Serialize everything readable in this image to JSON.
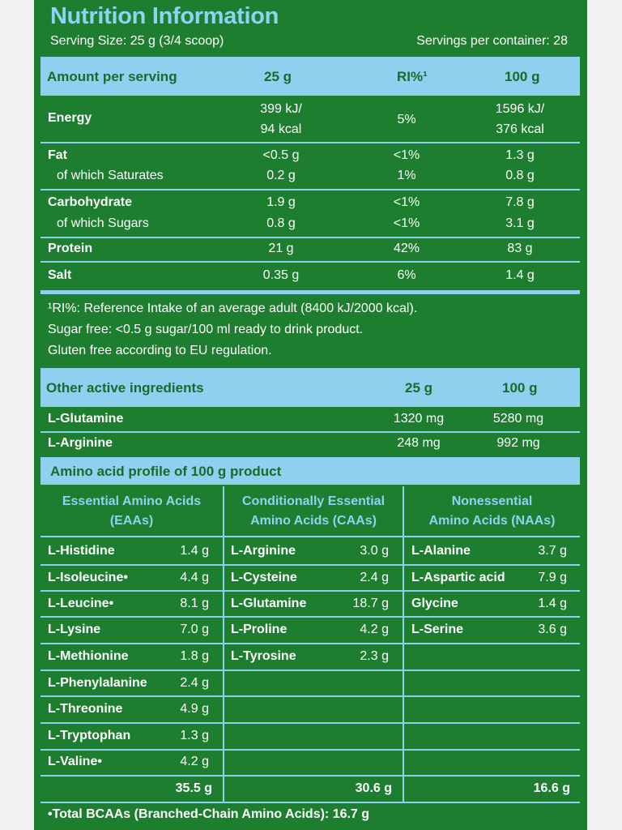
{
  "title": "Nutrition Information",
  "serving_size": "Serving Size: 25 g (3/4 scoop)",
  "servings_per_container": "Servings per container: 28",
  "header": {
    "col1": "Amount per serving",
    "col2": "25 g",
    "col3": "RI%¹",
    "col4": "100 g"
  },
  "rows": [
    {
      "name": "Energy",
      "v25": "399 kJ/",
      "v25b": "94 kcal",
      "ri": "5%",
      "v100": "1596 kJ/",
      "v100b": "376 kcal"
    },
    {
      "name": "Fat",
      "v25": "<0.5 g",
      "ri": "<1%",
      "v100": "1.3 g"
    },
    {
      "name": "of which Saturates",
      "v25": "0.2 g",
      "ri": "1%",
      "v100": "0.8 g"
    },
    {
      "name": "Carbohydrate",
      "v25": "1.9 g",
      "ri": "<1%",
      "v100": "7.8 g"
    },
    {
      "name": "of which Sugars",
      "v25": "0.8 g",
      "ri": "<1%",
      "v100": "3.1 g"
    },
    {
      "name": "Protein",
      "v25": "21 g",
      "ri": "42%",
      "v100": "83 g"
    },
    {
      "name": "Salt",
      "v25": "0.35 g",
      "ri": "6%",
      "v100": "1.4 g"
    }
  ],
  "notes": [
    "¹RI%: Reference Intake of an average adult (8400 kJ/2000 kcal).",
    "Sugar free: <0.5 g sugar/100 ml ready to drink product.",
    "Gluten free according to EU regulation."
  ],
  "other": {
    "header": "Other active ingredients",
    "col25": "25 g",
    "col100": "100 g",
    "items": [
      {
        "name": "L-Glutamine",
        "v25": "1320 mg",
        "v100": "5280 mg"
      },
      {
        "name": "L-Arginine",
        "v25": "248 mg",
        "v100": "992 mg"
      }
    ]
  },
  "amino": {
    "header": "Amino acid profile of 100 g product",
    "eaa_title": [
      "Essential Amino Acids",
      "(EAAs)"
    ],
    "caa_title": [
      "Conditionally Essential",
      "Amino Acids (CAAs)"
    ],
    "naa_title": [
      "Nonessential",
      "Amino Acids (NAAs)"
    ],
    "eaa": [
      {
        "name": "L-Histidine",
        "val": "1.4 g"
      },
      {
        "name": "L-Isoleucine•",
        "val": "4.4 g"
      },
      {
        "name": "L-Leucine•",
        "val": "8.1 g"
      },
      {
        "name": "L-Lysine",
        "val": "7.0 g"
      },
      {
        "name": "L-Methionine",
        "val": "1.8 g"
      },
      {
        "name": "L-Phenylalanine",
        "val": "2.4 g"
      },
      {
        "name": "L-Threonine",
        "val": "4.9 g"
      },
      {
        "name": "L-Tryptophan",
        "val": "1.3 g"
      },
      {
        "name": "L-Valine•",
        "val": "4.2 g"
      }
    ],
    "caa": [
      {
        "name": "L-Arginine",
        "val": "3.0 g"
      },
      {
        "name": "L-Cysteine",
        "val": "2.4 g"
      },
      {
        "name": "L-Glutamine",
        "val": "18.7 g"
      },
      {
        "name": "L-Proline",
        "val": "4.2 g"
      },
      {
        "name": "L-Tyrosine",
        "val": "2.3 g"
      }
    ],
    "naa": [
      {
        "name": "L-Alanine",
        "val": "3.7 g"
      },
      {
        "name": "L-Aspartic acid",
        "val": "7.9 g"
      },
      {
        "name": "Glycine",
        "val": "1.4 g"
      },
      {
        "name": "L-Serine",
        "val": "3.6 g"
      }
    ],
    "totals": {
      "eaa": "35.5 g",
      "caa": "30.6 g",
      "naa": "16.6 g"
    }
  },
  "bcaa_note": "•Total BCAAs (Branched-Chain Amino Acids): 16.7 g"
}
